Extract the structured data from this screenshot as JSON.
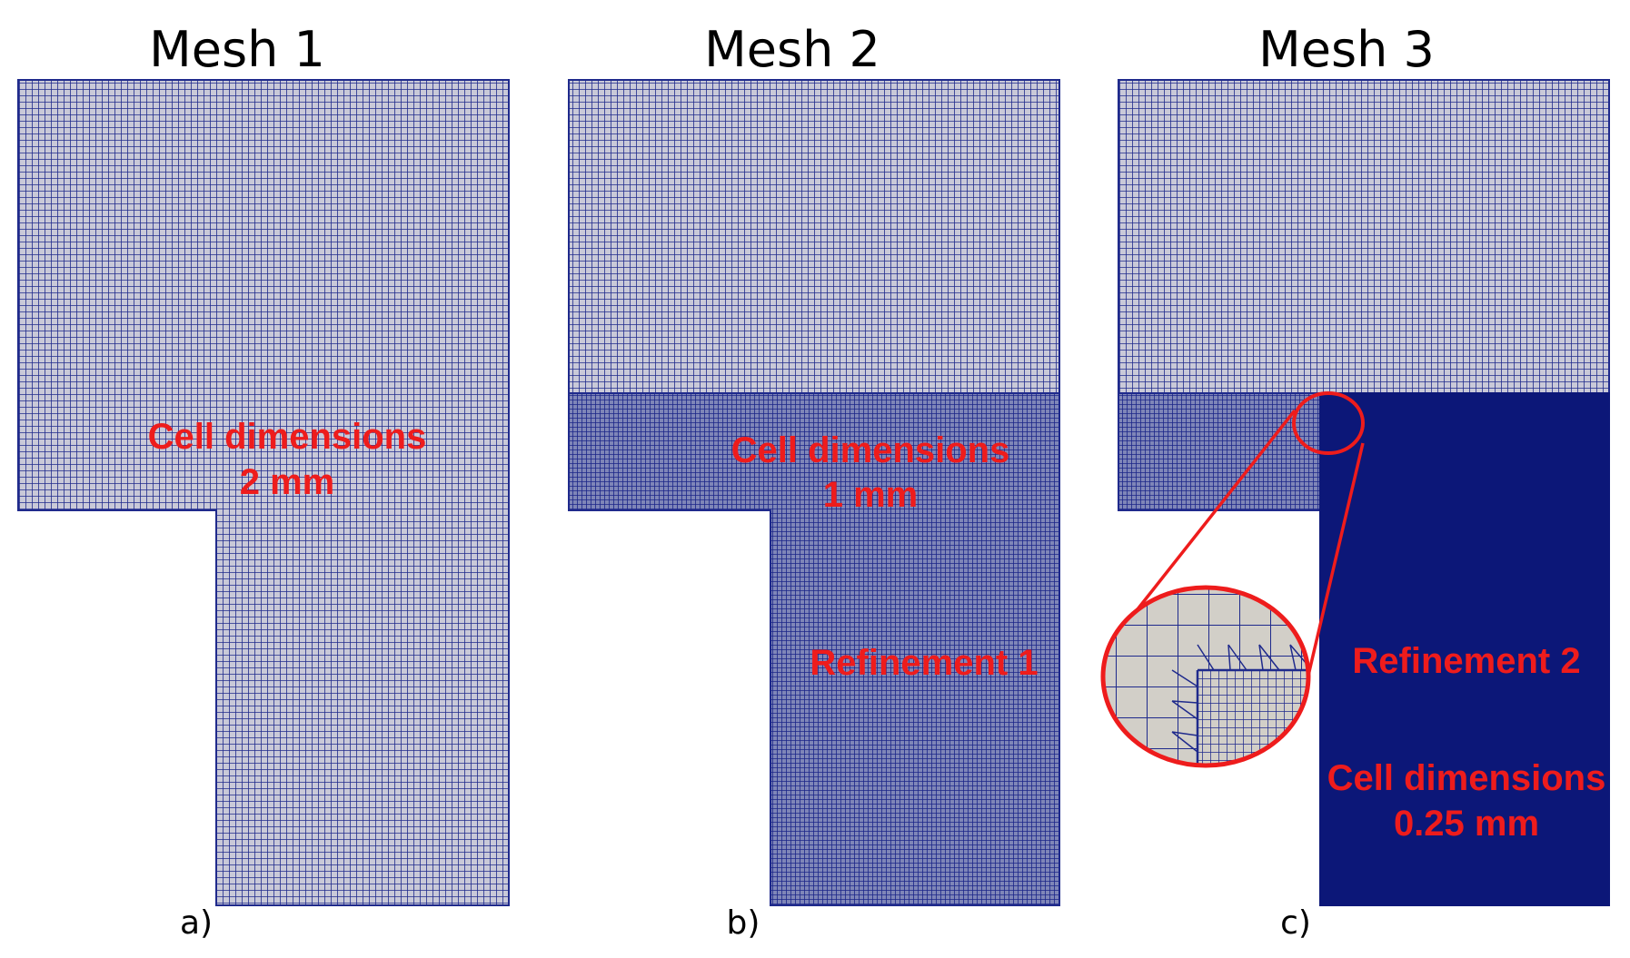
{
  "colors": {
    "background": "#ffffff",
    "mesh_line": "#1f2a8c",
    "mesh_fill": "#c9c9d8",
    "refined_fill": "#0c1778",
    "annotation": "#ee1c1c",
    "zoom_fill": "#d2cfc8"
  },
  "panels": [
    {
      "title": "Mesh 1",
      "label": "a)",
      "annotations": [
        "Cell dimensions",
        "2 mm"
      ]
    },
    {
      "title": "Mesh 2",
      "label": "b)",
      "annotations": [
        "Cell dimensions",
        "1 mm",
        "Refinement 1"
      ]
    },
    {
      "title": "Mesh 3",
      "label": "c)",
      "annotations": [
        "Refinement 2",
        "Cell dimensions",
        "0.25 mm"
      ]
    }
  ]
}
